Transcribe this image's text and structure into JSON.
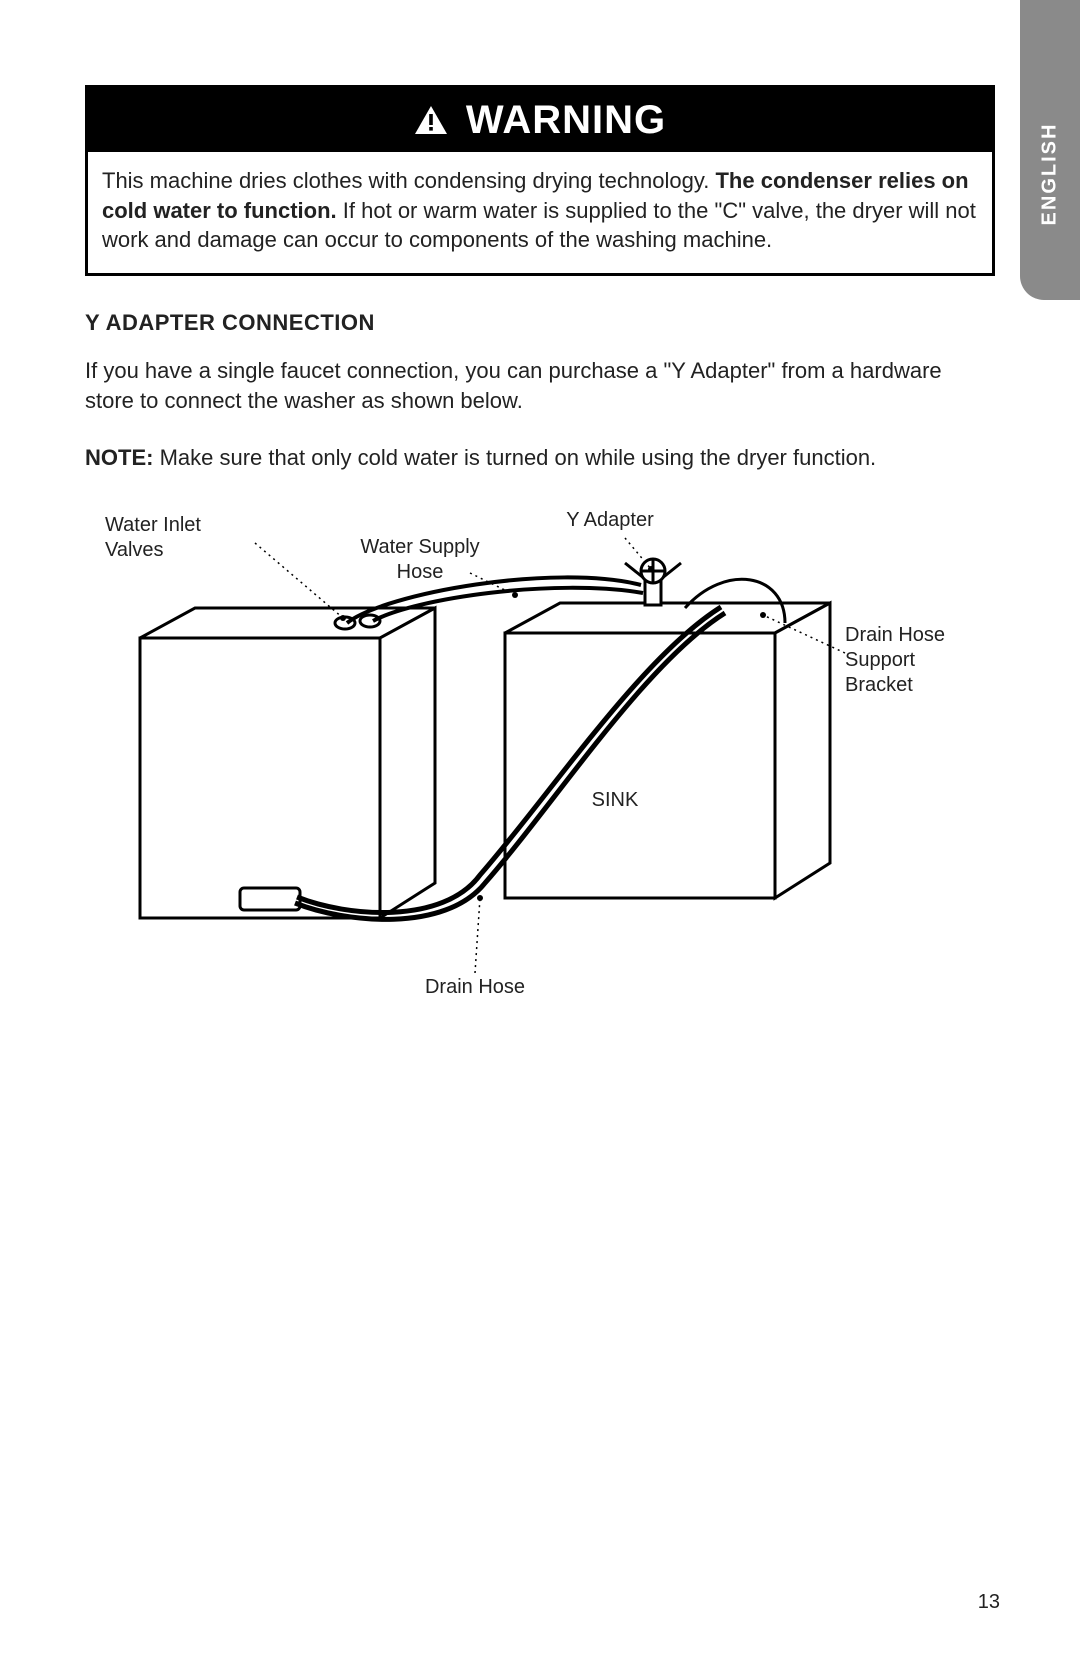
{
  "side_tab": {
    "label": "ENGLISH",
    "bg": "#8a8a8a",
    "text_color": "#ffffff"
  },
  "page_number": "13",
  "warning": {
    "title": "WARNING",
    "body_pre": "This machine dries clothes with condensing drying technology. ",
    "body_bold": "The condenser relies on cold water to function.",
    "body_post": " If hot or warm water is supplied to the \"C\" valve, the dryer will not work and damage can occur to components of the washing machine.",
    "header_bg": "#000000",
    "header_text_color": "#ffffff",
    "border_color": "#000000"
  },
  "section": {
    "title": "Y ADAPTER CONNECTION",
    "paragraph": "If you have a single faucet connection, you can purchase a \"Y Adapter\" from a hardware store to connect the washer as shown below.",
    "note_label": "NOTE:",
    "note_text": " Make sure that only cold water is turned on while using the dryer function."
  },
  "diagram": {
    "type": "diagram",
    "background_color": "#ffffff",
    "stroke_color": "#000000",
    "labels": {
      "water_inlet_valves": "Water Inlet\nValves",
      "water_supply_hose": "Water Supply\nHose",
      "y_adapter": "Y Adapter",
      "drain_hose_support": "Drain Hose\nSupport\nBracket",
      "sink": "SINK",
      "drain_hose": "Drain Hose"
    },
    "label_fontsize": 20
  }
}
